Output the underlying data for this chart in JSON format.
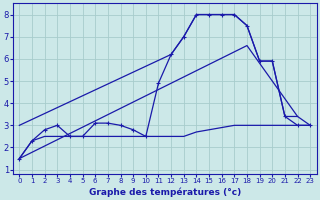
{
  "xlabel": "Graphe des températures (°c)",
  "bg_color": "#cce8e8",
  "grid_color": "#a8cccc",
  "line_color": "#1a1aaa",
  "xlim": [
    -0.5,
    23.5
  ],
  "ylim": [
    0.8,
    8.5
  ],
  "xticks": [
    0,
    1,
    2,
    3,
    4,
    5,
    6,
    7,
    8,
    9,
    10,
    11,
    12,
    13,
    14,
    15,
    16,
    17,
    18,
    19,
    20,
    21,
    22,
    23
  ],
  "yticks": [
    1,
    2,
    3,
    4,
    5,
    6,
    7,
    8
  ],
  "line1_x": [
    0,
    1,
    2,
    3,
    4,
    5,
    6,
    7,
    8,
    9,
    10,
    11,
    12,
    13,
    14,
    15,
    16,
    17,
    18,
    19,
    20,
    21,
    22,
    23
  ],
  "line1_y": [
    1.5,
    2.3,
    2.8,
    3.0,
    2.5,
    2.5,
    3.1,
    3.1,
    3.0,
    2.8,
    2.5,
    4.9,
    6.2,
    7.0,
    8.0,
    8.0,
    8.0,
    8.0,
    7.5,
    5.9,
    5.9,
    3.4,
    3.0,
    3.0
  ],
  "line2_x": [
    0,
    12,
    13,
    14,
    15,
    16,
    17,
    18,
    19,
    20,
    21,
    22
  ],
  "line2_y": [
    3.0,
    6.2,
    7.0,
    8.0,
    8.0,
    8.0,
    8.0,
    7.5,
    5.9,
    5.9,
    3.4,
    3.4
  ],
  "line3_x": [
    0,
    18,
    22,
    23
  ],
  "line3_y": [
    1.5,
    6.6,
    3.4,
    3.0
  ],
  "line4_x": [
    0,
    1,
    2,
    3,
    4,
    5,
    6,
    7,
    8,
    9,
    10,
    11,
    12,
    13,
    14,
    15,
    16,
    17,
    18,
    19,
    20,
    21,
    22,
    23
  ],
  "line4_y": [
    1.5,
    2.3,
    2.5,
    2.5,
    2.5,
    2.5,
    2.5,
    2.5,
    2.5,
    2.5,
    2.5,
    2.5,
    2.5,
    2.5,
    2.7,
    2.8,
    2.9,
    3.0,
    3.0,
    3.0,
    3.0,
    3.0,
    3.0,
    3.0
  ]
}
